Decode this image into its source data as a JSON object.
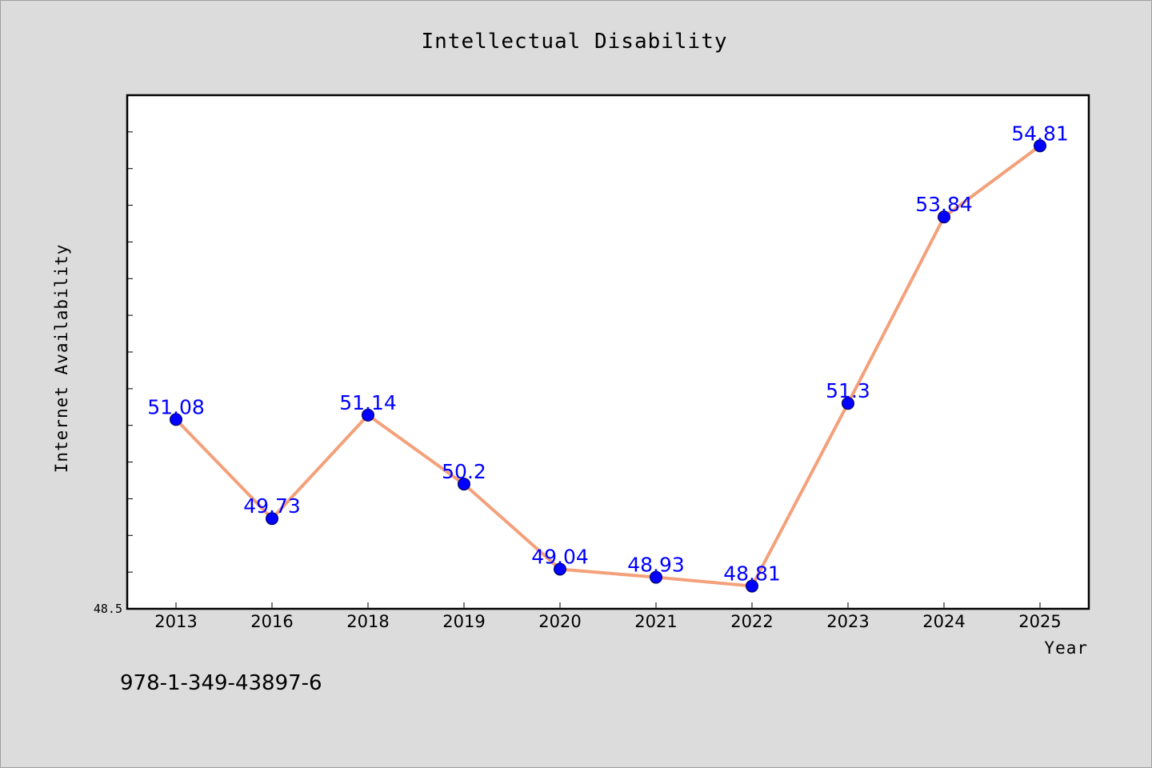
{
  "chart_data": {
    "type": "line",
    "title": "Intellectual Disability",
    "xlabel": "Year",
    "ylabel": "Internet Availability",
    "categories": [
      "2013",
      "2016",
      "2018",
      "2019",
      "2020",
      "2021",
      "2022",
      "2023",
      "2024",
      "2025"
    ],
    "values": [
      51.08,
      49.73,
      51.14,
      50.2,
      49.04,
      48.93,
      48.81,
      51.3,
      53.84,
      54.81
    ],
    "data_labels": [
      "51.08",
      "49.73",
      "51.14",
      "50.2",
      "49.04",
      "48.93",
      "48.81",
      "51.3",
      "53.84",
      "54.81"
    ],
    "ylim": [
      48.5,
      55.5
    ],
    "ymin_label": "48.5",
    "grid": false,
    "line_color": "#f4a07a",
    "marker_color": "#0000ff",
    "label_color": "#0000ff"
  },
  "footnote": "978-1-349-43897-6"
}
